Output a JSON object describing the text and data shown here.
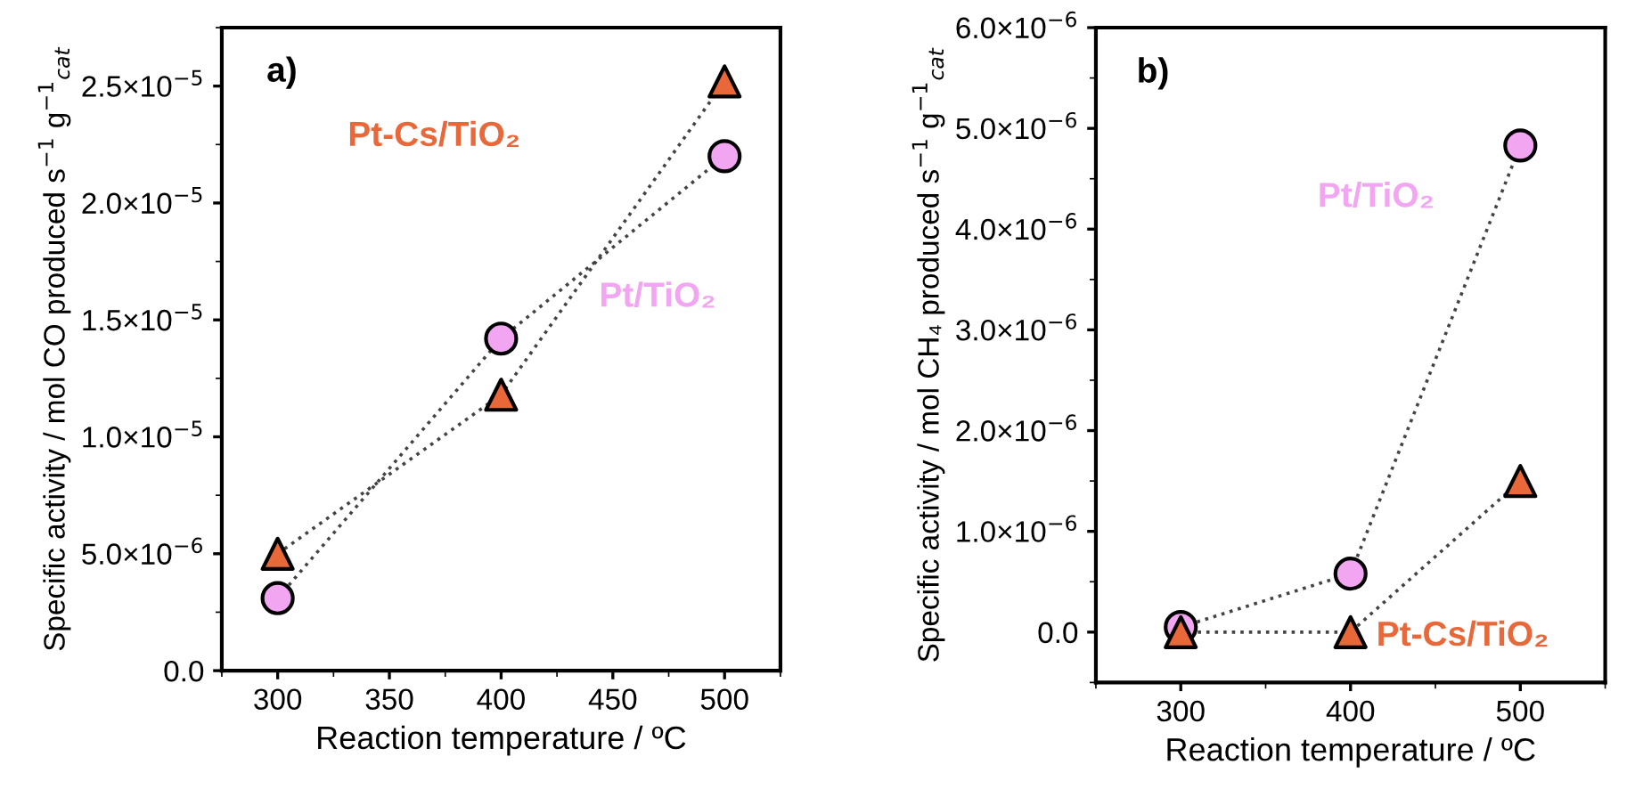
{
  "chart_data": [
    {
      "type": "line",
      "title": "a)",
      "xlabel": "Reaction temperature / ºC",
      "ylabel": "Specific activity / mol CO produced s$^{−1}$ g$^{−1}$$_{cat}$",
      "x": [
        300,
        400,
        500
      ],
      "xlim": [
        275,
        525
      ],
      "xticks": [
        300,
        350,
        400,
        450,
        500
      ],
      "ylim": [
        0,
        2.75e-05
      ],
      "yticks": [
        {
          "value": 0,
          "label": "0.0"
        },
        {
          "value": 5e-06,
          "label": "5.0×10$^{−6}$"
        },
        {
          "value": 1e-05,
          "label": "1.0×10$^{−5}$"
        },
        {
          "value": 1.5e-05,
          "label": "1.5×10$^{−5}$"
        },
        {
          "value": 2e-05,
          "label": "2.0×10$^{−5}$"
        },
        {
          "value": 2.5e-05,
          "label": "2.5×10$^{−5}$"
        }
      ],
      "line_style": "dotted",
      "grid": false,
      "legend": false,
      "series": [
        {
          "name": "Pt-Cs/TiO₂",
          "color": "#e8683a",
          "marker": "triangle",
          "values": [
            5e-06,
            1.18e-05,
            2.52e-05
          ]
        },
        {
          "name": "Pt/TiO₂",
          "color": "#f2a6f2",
          "marker": "circle",
          "values": [
            3.1e-06,
            1.42e-05,
            2.2e-05
          ]
        }
      ]
    },
    {
      "type": "line",
      "title": "b)",
      "xlabel": "Reaction temperature / ºC",
      "ylabel": "Specific activity / mol CH₄ produced s$^{−1}$ g$^{−1}$$_{cat}$",
      "x": [
        300,
        400,
        500
      ],
      "xlim": [
        250,
        550
      ],
      "xticks": [
        300,
        400,
        500
      ],
      "ylim": [
        -5e-07,
        6e-06
      ],
      "yticks": [
        {
          "value": 0,
          "label": "0.0"
        },
        {
          "value": 1e-06,
          "label": "1.0×10$^{−6}$"
        },
        {
          "value": 2e-06,
          "label": "2.0×10$^{−6}$"
        },
        {
          "value": 3e-06,
          "label": "3.0×10$^{−6}$"
        },
        {
          "value": 4e-06,
          "label": "4.0×10$^{−6}$"
        },
        {
          "value": 5e-06,
          "label": "5.0×10$^{−6}$"
        },
        {
          "value": 6e-06,
          "label": "6.0×10$^{−6}$"
        }
      ],
      "line_style": "dotted",
      "grid": false,
      "legend": false,
      "series": [
        {
          "name": "Pt/TiO₂",
          "color": "#f2a6f2",
          "marker": "circle",
          "values": [
            5e-08,
            5.8e-07,
            4.83e-06
          ]
        },
        {
          "name": "Pt-Cs/TiO₂",
          "color": "#e8683a",
          "marker": "triangle",
          "values": [
            0,
            0,
            1.5e-06
          ]
        }
      ]
    }
  ]
}
